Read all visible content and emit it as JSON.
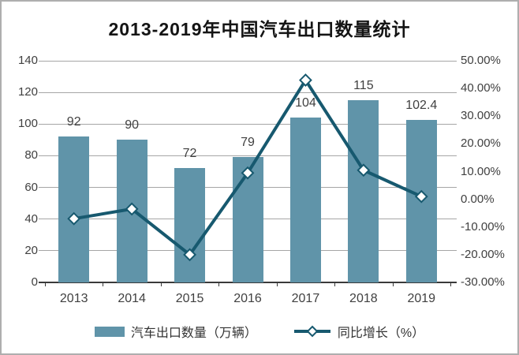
{
  "chart_data": {
    "type": "combo-bar-line",
    "title": "2013-2019年中国汽车出口数量统计",
    "categories": [
      "2013",
      "2014",
      "2015",
      "2016",
      "2017",
      "2018",
      "2019"
    ],
    "series": [
      {
        "name": "汽车出口数量（万辆）",
        "type": "bar",
        "axis": "left",
        "values": [
          92,
          90,
          72,
          79,
          104,
          115,
          102.4
        ],
        "data_labels": [
          "92",
          "90",
          "72",
          "79",
          "104",
          "115",
          "102.4"
        ],
        "color": "#6094a9"
      },
      {
        "name": "同比增长（%）",
        "type": "line",
        "axis": "right",
        "marker": "diamond",
        "values": [
          -7,
          -3.5,
          -20,
          9.5,
          43,
          10.5,
          1
        ],
        "color": "#17596f"
      }
    ],
    "left_axis": {
      "min": 0,
      "max": 140,
      "ticks": [
        "140",
        "120",
        "100",
        "80",
        "60",
        "40",
        "20",
        "0"
      ]
    },
    "right_axis": {
      "min": -30,
      "max": 50,
      "ticks": [
        "50.00%",
        "40.00%",
        "30.00%",
        "20.00%",
        "10.00%",
        "0.00%",
        "-10.00%",
        "-20.00%",
        "-30.00%"
      ]
    },
    "grid": true,
    "legend_position": "bottom"
  },
  "colors": {
    "gridline": "#a6a6a6",
    "axis_line": "#3a3a3a",
    "axis_text": "#404040",
    "title_text": "#141414",
    "frame_border": "#aeaeae",
    "marker_fill": "#ffffff"
  }
}
